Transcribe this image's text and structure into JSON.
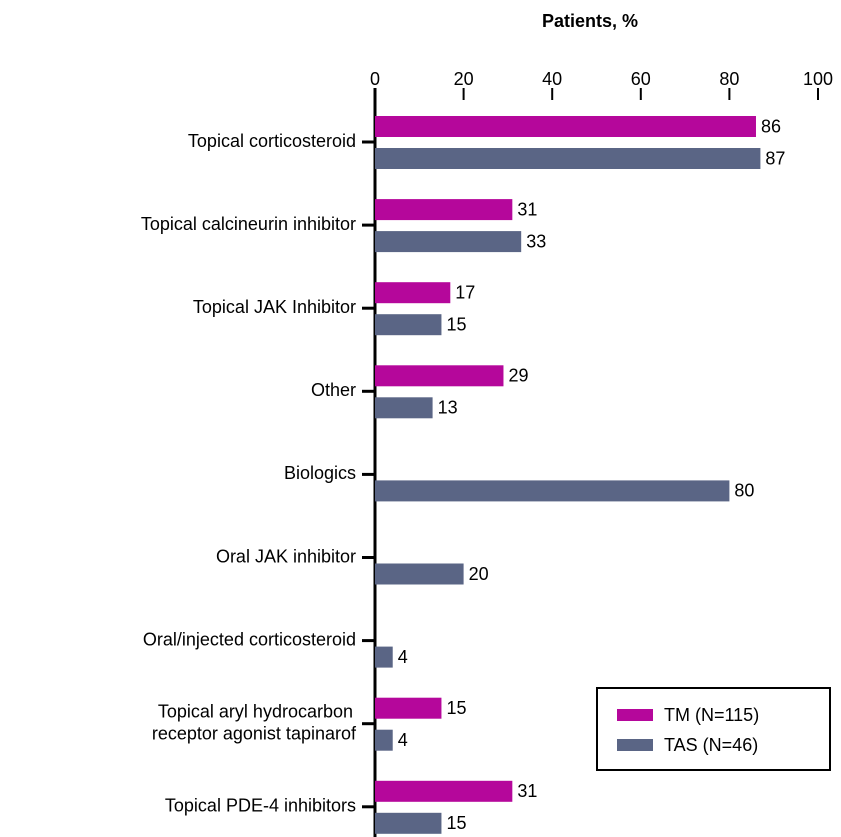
{
  "chart_data": {
    "type": "hbar",
    "xlabel": "Patients, %",
    "categories": [
      "Topical corticosteroid",
      "Topical calcineurin inhibitor",
      "Topical JAK Inhibitor",
      "Other",
      "Biologics",
      "Oral JAK inhibitor",
      "Oral/injected corticosteroid",
      "Topical aryl hydrocarbon\nreceptor agonist tapinarof",
      "Topical PDE-4 inhibitors"
    ],
    "series": [
      {
        "name": "TM (N=115)",
        "color": "#b5079b",
        "values": [
          86,
          31,
          17,
          29,
          null,
          null,
          null,
          15,
          31
        ]
      },
      {
        "name": "TAS (N=46)",
        "color": "#5a6585",
        "values": [
          87,
          33,
          15,
          13,
          80,
          20,
          4,
          4,
          15
        ]
      }
    ],
    "xlim": [
      0,
      100
    ],
    "xticks": [
      0,
      20,
      40,
      60,
      80,
      100
    ],
    "legend": "lower right"
  }
}
